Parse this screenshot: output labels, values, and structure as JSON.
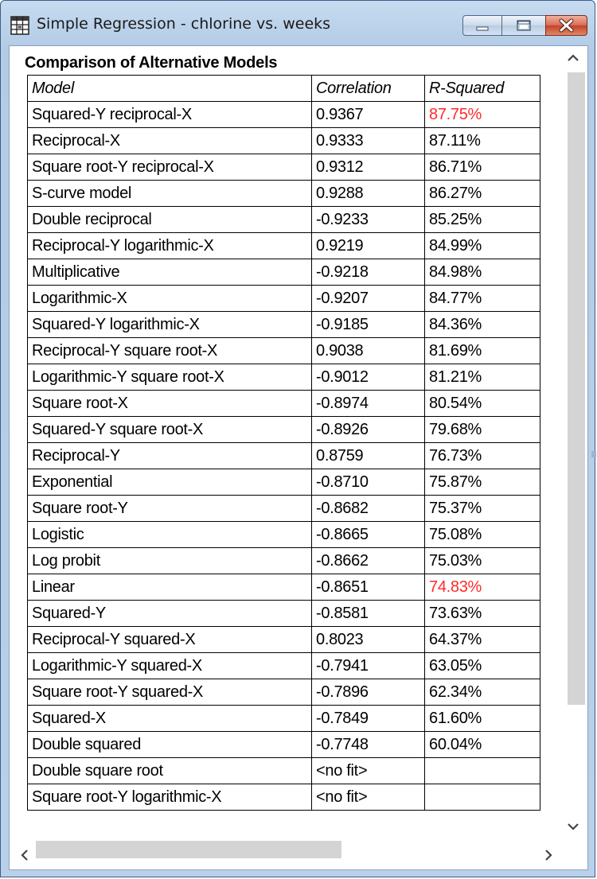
{
  "window": {
    "title": "Simple Regression - chlorine vs. weeks",
    "buttons": [
      "minimize",
      "maximize",
      "close"
    ]
  },
  "report": {
    "title": "Comparison of Alternative Models",
    "columns": [
      "Model",
      "Correlation",
      "R-Squared"
    ],
    "rows": [
      {
        "model": "Squared-Y reciprocal-X",
        "correlation": "0.9367",
        "r_squared": "87.75%",
        "highlight": true
      },
      {
        "model": "Reciprocal-X",
        "correlation": "0.9333",
        "r_squared": "87.11%",
        "highlight": false
      },
      {
        "model": "Square root-Y reciprocal-X",
        "correlation": "0.9312",
        "r_squared": "86.71%",
        "highlight": false
      },
      {
        "model": "S-curve model",
        "correlation": "0.9288",
        "r_squared": "86.27%",
        "highlight": false
      },
      {
        "model": "Double reciprocal",
        "correlation": "-0.9233",
        "r_squared": "85.25%",
        "highlight": false
      },
      {
        "model": "Reciprocal-Y logarithmic-X",
        "correlation": "0.9219",
        "r_squared": "84.99%",
        "highlight": false
      },
      {
        "model": "Multiplicative",
        "correlation": "-0.9218",
        "r_squared": "84.98%",
        "highlight": false
      },
      {
        "model": "Logarithmic-X",
        "correlation": "-0.9207",
        "r_squared": "84.77%",
        "highlight": false
      },
      {
        "model": "Squared-Y logarithmic-X",
        "correlation": "-0.9185",
        "r_squared": "84.36%",
        "highlight": false
      },
      {
        "model": "Reciprocal-Y square root-X",
        "correlation": "0.9038",
        "r_squared": "81.69%",
        "highlight": false
      },
      {
        "model": "Logarithmic-Y square root-X",
        "correlation": "-0.9012",
        "r_squared": "81.21%",
        "highlight": false
      },
      {
        "model": "Square root-X",
        "correlation": "-0.8974",
        "r_squared": "80.54%",
        "highlight": false
      },
      {
        "model": "Squared-Y square root-X",
        "correlation": "-0.8926",
        "r_squared": "79.68%",
        "highlight": false
      },
      {
        "model": "Reciprocal-Y",
        "correlation": "0.8759",
        "r_squared": "76.73%",
        "highlight": false
      },
      {
        "model": "Exponential",
        "correlation": "-0.8710",
        "r_squared": "75.87%",
        "highlight": false
      },
      {
        "model": "Square root-Y",
        "correlation": "-0.8682",
        "r_squared": "75.37%",
        "highlight": false
      },
      {
        "model": "Logistic",
        "correlation": "-0.8665",
        "r_squared": "75.08%",
        "highlight": false
      },
      {
        "model": "Log probit",
        "correlation": "-0.8662",
        "r_squared": "75.03%",
        "highlight": false
      },
      {
        "model": "Linear",
        "correlation": "-0.8651",
        "r_squared": "74.83%",
        "highlight": true
      },
      {
        "model": "Squared-Y",
        "correlation": "-0.8581",
        "r_squared": "73.63%",
        "highlight": false
      },
      {
        "model": "Reciprocal-Y squared-X",
        "correlation": "0.8023",
        "r_squared": "64.37%",
        "highlight": false
      },
      {
        "model": "Logarithmic-Y squared-X",
        "correlation": "-0.7941",
        "r_squared": "63.05%",
        "highlight": false
      },
      {
        "model": "Square root-Y squared-X",
        "correlation": "-0.7896",
        "r_squared": "62.34%",
        "highlight": false
      },
      {
        "model": "Squared-X",
        "correlation": "-0.7849",
        "r_squared": "61.60%",
        "highlight": false
      },
      {
        "model": "Double squared",
        "correlation": "-0.7748",
        "r_squared": "60.04%",
        "highlight": false
      },
      {
        "model": "Double square root",
        "correlation": "<no fit>",
        "r_squared": "",
        "highlight": false
      },
      {
        "model": "Square root-Y logarithmic-X",
        "correlation": "<no fit>",
        "r_squared": "",
        "highlight": false
      }
    ]
  },
  "colors": {
    "highlight": "#ff2a2a",
    "scroll_track": "#d4d4d4",
    "window_frame": "#b9d0ea"
  },
  "icons": {
    "app": "spreadsheet-grid-icon",
    "scroll_up": "chevron-up-icon",
    "scroll_down": "chevron-down-icon",
    "scroll_left": "chevron-left-icon",
    "scroll_right": "chevron-right-icon"
  }
}
